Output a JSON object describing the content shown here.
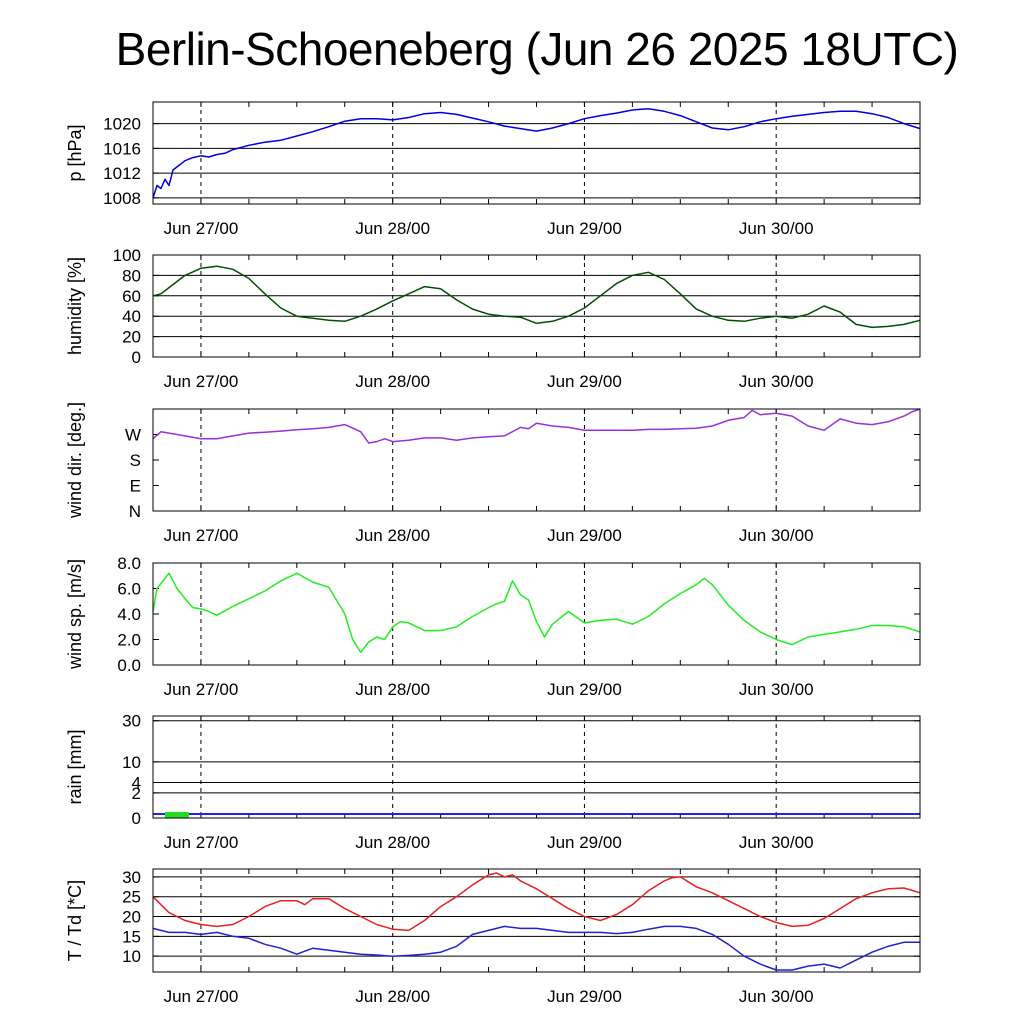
{
  "title": "Berlin-Schoeneberg (Jun 26 2025 18UTC)",
  "x_tick_labels": [
    "Jun 27/00",
    "Jun 28/00",
    "Jun 29/00",
    "Jun 30/00"
  ],
  "x_tick_hours": [
    6,
    30,
    54,
    78
  ],
  "x_range_hours": [
    0,
    96
  ],
  "chart_data": [
    {
      "type": "line",
      "ylabel": "p [hPa]",
      "ylim": [
        1007,
        1023.5
      ],
      "yticks": [
        1008,
        1012,
        1016,
        1020
      ],
      "ytick_labels": [
        "1008",
        "1012",
        "1016",
        "1020"
      ],
      "grid": true,
      "series": [
        {
          "color": "#0000e0",
          "x": [
            0,
            0.5,
            1,
            1.5,
            2,
            2.5,
            3,
            3.5,
            4,
            5,
            6,
            7,
            8,
            9,
            10,
            12,
            14,
            16,
            18,
            20,
            22,
            24,
            26,
            28,
            30,
            32,
            34,
            36,
            38,
            40,
            42,
            44,
            46,
            48,
            50,
            52,
            54,
            56,
            58,
            60,
            62,
            64,
            66,
            68,
            70,
            72,
            74,
            76,
            78,
            80,
            82,
            84,
            86,
            88,
            90,
            92,
            94,
            96
          ],
          "y": [
            1008,
            1010,
            1009.5,
            1011,
            1010,
            1012.5,
            1013,
            1013.5,
            1014,
            1014.5,
            1014.8,
            1014.6,
            1015,
            1015.2,
            1015.8,
            1016.5,
            1017,
            1017.3,
            1018,
            1018.7,
            1019.5,
            1020.4,
            1020.8,
            1020.8,
            1020.6,
            1021,
            1021.6,
            1021.8,
            1021.5,
            1020.9,
            1020.3,
            1019.6,
            1019.2,
            1018.8,
            1019.3,
            1020,
            1020.8,
            1021.3,
            1021.7,
            1022.2,
            1022.4,
            1022,
            1021.3,
            1020.3,
            1019.3,
            1019,
            1019.5,
            1020.3,
            1020.8,
            1021.2,
            1021.5,
            1021.8,
            1022,
            1022,
            1021.6,
            1021,
            1020,
            1019.2
          ]
        }
      ]
    },
    {
      "type": "line",
      "ylabel": "humidity [%]",
      "ylim": [
        0,
        100
      ],
      "yticks": [
        0,
        20,
        40,
        60,
        80,
        100
      ],
      "ytick_labels": [
        "0",
        "20",
        "40",
        "60",
        "80",
        "100"
      ],
      "grid": true,
      "series": [
        {
          "color": "#005000",
          "x": [
            0,
            1,
            2,
            4,
            6,
            8,
            10,
            12,
            14,
            16,
            18,
            20,
            22,
            24,
            26,
            28,
            30,
            32,
            34,
            36,
            38,
            40,
            42,
            44,
            46,
            48,
            50,
            52,
            54,
            56,
            58,
            60,
            62,
            64,
            66,
            68,
            70,
            72,
            74,
            76,
            78,
            80,
            82,
            84,
            86,
            88,
            90,
            92,
            94,
            96
          ],
          "y": [
            60,
            62,
            68,
            80,
            87,
            89,
            86,
            77,
            62,
            48,
            40,
            38,
            36,
            35,
            40,
            47,
            55,
            62,
            69,
            67,
            56,
            47,
            42,
            40,
            39,
            33,
            35,
            40,
            48,
            60,
            72,
            80,
            83,
            76,
            62,
            47,
            40,
            36,
            35,
            38,
            40,
            38,
            42,
            50,
            44,
            32,
            29,
            30,
            32,
            36
          ]
        }
      ]
    },
    {
      "type": "line",
      "ylabel": "wind dir. [deg.]",
      "ylim": [
        0,
        360
      ],
      "yticks": [
        0,
        90,
        180,
        270
      ],
      "ytick_labels": [
        "N",
        "E",
        "S",
        "W"
      ],
      "grid": false,
      "series": [
        {
          "color": "#9a30d8",
          "x": [
            0,
            1,
            2,
            4,
            6,
            8,
            10,
            12,
            14,
            16,
            18,
            20,
            22,
            24,
            26,
            27,
            28,
            29,
            30,
            32,
            34,
            36,
            38,
            40,
            42,
            44,
            46,
            47,
            48,
            50,
            52,
            54,
            56,
            58,
            60,
            62,
            64,
            66,
            68,
            70,
            72,
            74,
            75,
            76,
            78,
            80,
            82,
            84,
            86,
            88,
            90,
            92,
            94,
            95,
            96
          ],
          "y": [
            255,
            280,
            275,
            265,
            255,
            255,
            265,
            275,
            278,
            282,
            287,
            290,
            295,
            305,
            280,
            240,
            245,
            255,
            245,
            250,
            258,
            258,
            250,
            258,
            262,
            265,
            295,
            290,
            310,
            300,
            295,
            285,
            285,
            285,
            285,
            288,
            288,
            290,
            292,
            300,
            320,
            330,
            355,
            340,
            345,
            335,
            300,
            285,
            325,
            310,
            305,
            315,
            335,
            350,
            360
          ]
        }
      ]
    },
    {
      "type": "line",
      "ylabel": "wind sp. [m/s]",
      "ylim": [
        0,
        8
      ],
      "yticks": [
        0,
        2,
        4,
        6,
        8
      ],
      "ytick_labels": [
        "0.0",
        "2.0",
        "4.0",
        "6.0",
        "8.0"
      ],
      "grid": false,
      "series": [
        {
          "color": "#22ee22",
          "x": [
            0,
            0.5,
            1,
            2,
            3,
            4,
            5,
            6,
            7,
            8,
            10,
            12,
            14,
            16,
            18,
            20,
            22,
            24,
            25,
            26,
            27,
            28,
            29,
            30,
            31,
            32,
            34,
            36,
            38,
            40,
            42,
            43,
            44,
            45,
            46,
            47,
            48,
            49,
            50,
            52,
            54,
            56,
            58,
            60,
            62,
            64,
            66,
            68,
            69,
            70,
            72,
            74,
            76,
            78,
            80,
            82,
            84,
            86,
            88,
            90,
            92,
            94,
            96
          ],
          "y": [
            4.2,
            6.0,
            6.4,
            7.2,
            6.0,
            5.2,
            4.5,
            4.4,
            4.2,
            3.9,
            4.6,
            5.2,
            5.8,
            6.6,
            7.2,
            6.5,
            6.1,
            4.0,
            2.0,
            1.0,
            1.8,
            2.2,
            2.0,
            3.0,
            3.4,
            3.3,
            2.7,
            2.7,
            3.0,
            3.8,
            4.5,
            4.8,
            5.0,
            6.6,
            5.5,
            5.1,
            3.4,
            2.2,
            3.2,
            4.2,
            3.3,
            3.5,
            3.6,
            3.2,
            3.8,
            4.8,
            5.6,
            6.3,
            6.8,
            6.3,
            4.7,
            3.5,
            2.6,
            2.0,
            1.6,
            2.2,
            2.4,
            2.6,
            2.8,
            3.1,
            3.1,
            3.0,
            2.6
          ]
        }
      ]
    },
    {
      "type": "bar",
      "ylabel": "rain [mm]",
      "yticks": [
        0,
        2,
        4,
        10,
        30
      ],
      "ytick_labels": [
        "0",
        "2",
        "4",
        "10",
        "30"
      ],
      "grid": true,
      "baseline_color": "#2222ee",
      "bars": [
        {
          "x_start": 1.5,
          "x_end": 4.5,
          "value": 0.05,
          "color": "#22dd22"
        }
      ]
    },
    {
      "type": "line",
      "ylabel": "T / Td [*C]",
      "ylim": [
        6,
        32
      ],
      "yticks": [
        10,
        15,
        20,
        25,
        30
      ],
      "ytick_labels": [
        "10",
        "15",
        "20",
        "25",
        "30"
      ],
      "grid": true,
      "series": [
        {
          "color": "#e82020",
          "x": [
            0,
            1,
            2,
            4,
            6,
            8,
            10,
            12,
            14,
            16,
            18,
            19,
            20,
            22,
            24,
            26,
            28,
            30,
            32,
            34,
            36,
            38,
            40,
            42,
            43,
            44,
            45,
            46,
            48,
            50,
            52,
            54,
            56,
            58,
            60,
            62,
            64,
            65,
            66,
            68,
            70,
            72,
            74,
            76,
            78,
            80,
            82,
            84,
            86,
            88,
            90,
            92,
            94,
            96
          ],
          "y": [
            25,
            23,
            21,
            19,
            18,
            17.5,
            18,
            20,
            22.5,
            24,
            24,
            23,
            24.5,
            24.5,
            22,
            20,
            18,
            16.8,
            16.5,
            19,
            22.5,
            25,
            28,
            30.5,
            31,
            30,
            30.5,
            29,
            27,
            24.5,
            22,
            20,
            19,
            20.5,
            23,
            26.5,
            29,
            29.8,
            30,
            27.5,
            26,
            24,
            22,
            20,
            18.5,
            17.5,
            17.8,
            19.5,
            22,
            24.5,
            26,
            27,
            27.2,
            26
          ]
        },
        {
          "color": "#2222cc",
          "x": [
            0,
            2,
            4,
            6,
            8,
            10,
            12,
            14,
            16,
            18,
            20,
            22,
            24,
            26,
            28,
            30,
            32,
            34,
            36,
            38,
            40,
            42,
            44,
            46,
            48,
            50,
            52,
            54,
            56,
            58,
            60,
            62,
            64,
            66,
            68,
            70,
            72,
            74,
            76,
            78,
            80,
            82,
            84,
            86,
            88,
            90,
            92,
            94,
            96
          ],
          "y": [
            17,
            16,
            16,
            15.5,
            16,
            15,
            14.5,
            13,
            12,
            10.5,
            12,
            11.5,
            11,
            10.5,
            10.3,
            10,
            10.2,
            10.5,
            11,
            12.5,
            15.5,
            16.5,
            17.5,
            17,
            17,
            16.5,
            16,
            16,
            16,
            15.7,
            16,
            16.8,
            17.5,
            17.5,
            17,
            15.5,
            13,
            10,
            8,
            6.5,
            6.5,
            7.5,
            8,
            7,
            9,
            11,
            12.5,
            13.5,
            13.5
          ]
        }
      ]
    }
  ]
}
